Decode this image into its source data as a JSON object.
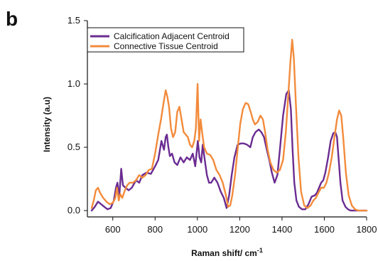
{
  "panel_label": "b",
  "colors": {
    "calcification": "#6a2c91",
    "connective": "#f28b3c",
    "axis": "#111111"
  },
  "chart_data": {
    "type": "line",
    "title": "",
    "xlabel": "Raman shift/ cm",
    "xlabel_superscript": "-1",
    "ylabel": "Intensity (a.u)",
    "xlim": [
      480,
      1800
    ],
    "ylim": [
      -0.05,
      1.5
    ],
    "x_ticks": [
      600,
      800,
      1000,
      1200,
      1400,
      1600,
      1800
    ],
    "y_ticks": [
      0.0,
      0.5,
      1.0,
      1.5
    ],
    "x_tick_labels": [
      "600",
      "800",
      "1000",
      "1200",
      "1400",
      "1600",
      "1800"
    ],
    "y_tick_labels": [
      "0.0",
      "0.5",
      "1.0",
      "1.5"
    ],
    "legend_position": "top-left",
    "grid": false,
    "series": [
      {
        "name": "Calcification Adjacent Centroid",
        "color": "#6a2c91",
        "x": [
          500,
          515,
          530,
          545,
          560,
          575,
          590,
          605,
          615,
          622,
          630,
          640,
          648,
          660,
          675,
          690,
          710,
          725,
          740,
          760,
          780,
          800,
          815,
          830,
          842,
          850,
          856,
          863,
          870,
          880,
          892,
          905,
          920,
          935,
          950,
          965,
          978,
          990,
          1002,
          1010,
          1018,
          1025,
          1035,
          1045,
          1055,
          1065,
          1080,
          1095,
          1110,
          1125,
          1138,
          1150,
          1162,
          1175,
          1190,
          1205,
          1220,
          1235,
          1250,
          1262,
          1275,
          1290,
          1302,
          1315,
          1328,
          1340,
          1352,
          1365,
          1378,
          1390,
          1405,
          1420,
          1432,
          1442,
          1450,
          1458,
          1468,
          1480,
          1495,
          1510,
          1525,
          1540,
          1555,
          1565,
          1575,
          1585,
          1595,
          1605,
          1618,
          1630,
          1642,
          1652,
          1660,
          1668,
          1676,
          1686,
          1700,
          1712,
          1725,
          1740,
          1760,
          1780,
          1800
        ],
        "y": [
          0.0,
          0.03,
          0.07,
          0.05,
          0.03,
          0.01,
          0.02,
          0.08,
          0.18,
          0.22,
          0.1,
          0.33,
          0.2,
          0.18,
          0.16,
          0.18,
          0.24,
          0.22,
          0.28,
          0.3,
          0.29,
          0.35,
          0.4,
          0.55,
          0.48,
          0.58,
          0.6,
          0.5,
          0.43,
          0.45,
          0.38,
          0.36,
          0.42,
          0.38,
          0.42,
          0.4,
          0.45,
          0.35,
          0.55,
          0.42,
          0.38,
          0.52,
          0.4,
          0.28,
          0.22,
          0.22,
          0.26,
          0.22,
          0.15,
          0.1,
          0.02,
          0.12,
          0.28,
          0.42,
          0.52,
          0.53,
          0.53,
          0.52,
          0.5,
          0.58,
          0.62,
          0.64,
          0.62,
          0.58,
          0.48,
          0.4,
          0.3,
          0.22,
          0.28,
          0.48,
          0.75,
          0.92,
          0.95,
          0.8,
          0.48,
          0.22,
          0.08,
          0.03,
          0.01,
          0.01,
          0.05,
          0.11,
          0.12,
          0.14,
          0.18,
          0.22,
          0.24,
          0.3,
          0.42,
          0.55,
          0.61,
          0.62,
          0.58,
          0.4,
          0.22,
          0.08,
          0.03,
          0.01,
          0.0,
          0.0,
          0.0,
          0.0,
          0.0
        ]
      },
      {
        "name": "Connective Tissue Centroid",
        "color": "#f28b3c",
        "x": [
          500,
          510,
          520,
          530,
          540,
          555,
          570,
          585,
          600,
          612,
          620,
          628,
          636,
          645,
          655,
          668,
          680,
          695,
          710,
          725,
          740,
          755,
          770,
          785,
          800,
          815,
          828,
          840,
          850,
          858,
          866,
          875,
          885,
          895,
          905,
          915,
          925,
          935,
          945,
          955,
          965,
          975,
          985,
          993,
          1001,
          1008,
          1015,
          1022,
          1032,
          1045,
          1060,
          1075,
          1090,
          1105,
          1120,
          1135,
          1145,
          1155,
          1165,
          1178,
          1190,
          1202,
          1215,
          1228,
          1240,
          1252,
          1262,
          1272,
          1285,
          1298,
          1310,
          1320,
          1332,
          1345,
          1360,
          1375,
          1390,
          1405,
          1418,
          1430,
          1440,
          1448,
          1456,
          1466,
          1478,
          1490,
          1505,
          1520,
          1535,
          1548,
          1560,
          1572,
          1585,
          1598,
          1610,
          1622,
          1635,
          1648,
          1660,
          1670,
          1680,
          1690,
          1702,
          1715,
          1730,
          1745,
          1760,
          1780,
          1800
        ],
        "y": [
          0.02,
          0.08,
          0.16,
          0.18,
          0.14,
          0.1,
          0.07,
          0.05,
          0.06,
          0.1,
          0.18,
          0.08,
          0.13,
          0.1,
          0.15,
          0.2,
          0.22,
          0.22,
          0.24,
          0.28,
          0.26,
          0.28,
          0.32,
          0.33,
          0.45,
          0.6,
          0.72,
          0.85,
          0.95,
          0.9,
          0.82,
          0.65,
          0.58,
          0.62,
          0.78,
          0.82,
          0.72,
          0.62,
          0.6,
          0.58,
          0.52,
          0.5,
          0.55,
          0.65,
          1.0,
          0.55,
          0.72,
          0.62,
          0.5,
          0.45,
          0.44,
          0.4,
          0.32,
          0.28,
          0.22,
          0.12,
          0.03,
          0.04,
          0.12,
          0.28,
          0.48,
          0.68,
          0.8,
          0.85,
          0.84,
          0.78,
          0.72,
          0.68,
          0.7,
          0.75,
          0.72,
          0.62,
          0.48,
          0.38,
          0.32,
          0.3,
          0.32,
          0.4,
          0.62,
          0.92,
          1.18,
          1.35,
          1.2,
          0.82,
          0.42,
          0.15,
          0.04,
          0.02,
          0.04,
          0.08,
          0.1,
          0.14,
          0.18,
          0.18,
          0.22,
          0.3,
          0.42,
          0.58,
          0.72,
          0.79,
          0.75,
          0.56,
          0.3,
          0.12,
          0.04,
          0.01,
          0.0,
          0.0,
          0.0
        ]
      }
    ]
  }
}
